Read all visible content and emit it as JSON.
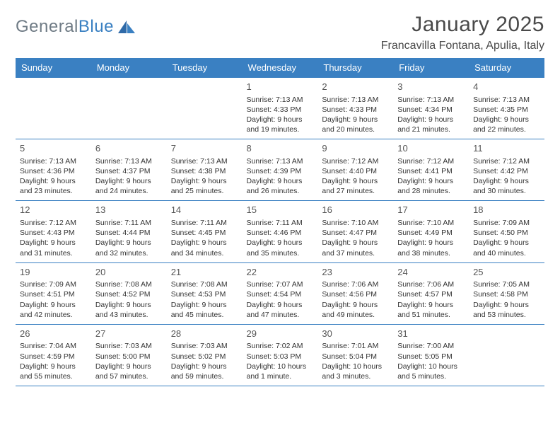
{
  "brand": {
    "part1": "General",
    "part2": "Blue"
  },
  "title": "January 2025",
  "location": "Francavilla Fontana, Apulia, Italy",
  "colors": {
    "header_bg": "#3a80c2",
    "header_text": "#ffffff",
    "rule": "#3a80c2",
    "title_color": "#4a4a4a",
    "body_text": "#333333"
  },
  "weekdays": [
    "Sunday",
    "Monday",
    "Tuesday",
    "Wednesday",
    "Thursday",
    "Friday",
    "Saturday"
  ],
  "weeks": [
    [
      null,
      null,
      null,
      {
        "day": "1",
        "sunrise": "Sunrise: 7:13 AM",
        "sunset": "Sunset: 4:33 PM",
        "daylight": "Daylight: 9 hours and 19 minutes."
      },
      {
        "day": "2",
        "sunrise": "Sunrise: 7:13 AM",
        "sunset": "Sunset: 4:33 PM",
        "daylight": "Daylight: 9 hours and 20 minutes."
      },
      {
        "day": "3",
        "sunrise": "Sunrise: 7:13 AM",
        "sunset": "Sunset: 4:34 PM",
        "daylight": "Daylight: 9 hours and 21 minutes."
      },
      {
        "day": "4",
        "sunrise": "Sunrise: 7:13 AM",
        "sunset": "Sunset: 4:35 PM",
        "daylight": "Daylight: 9 hours and 22 minutes."
      }
    ],
    [
      {
        "day": "5",
        "sunrise": "Sunrise: 7:13 AM",
        "sunset": "Sunset: 4:36 PM",
        "daylight": "Daylight: 9 hours and 23 minutes."
      },
      {
        "day": "6",
        "sunrise": "Sunrise: 7:13 AM",
        "sunset": "Sunset: 4:37 PM",
        "daylight": "Daylight: 9 hours and 24 minutes."
      },
      {
        "day": "7",
        "sunrise": "Sunrise: 7:13 AM",
        "sunset": "Sunset: 4:38 PM",
        "daylight": "Daylight: 9 hours and 25 minutes."
      },
      {
        "day": "8",
        "sunrise": "Sunrise: 7:13 AM",
        "sunset": "Sunset: 4:39 PM",
        "daylight": "Daylight: 9 hours and 26 minutes."
      },
      {
        "day": "9",
        "sunrise": "Sunrise: 7:12 AM",
        "sunset": "Sunset: 4:40 PM",
        "daylight": "Daylight: 9 hours and 27 minutes."
      },
      {
        "day": "10",
        "sunrise": "Sunrise: 7:12 AM",
        "sunset": "Sunset: 4:41 PM",
        "daylight": "Daylight: 9 hours and 28 minutes."
      },
      {
        "day": "11",
        "sunrise": "Sunrise: 7:12 AM",
        "sunset": "Sunset: 4:42 PM",
        "daylight": "Daylight: 9 hours and 30 minutes."
      }
    ],
    [
      {
        "day": "12",
        "sunrise": "Sunrise: 7:12 AM",
        "sunset": "Sunset: 4:43 PM",
        "daylight": "Daylight: 9 hours and 31 minutes."
      },
      {
        "day": "13",
        "sunrise": "Sunrise: 7:11 AM",
        "sunset": "Sunset: 4:44 PM",
        "daylight": "Daylight: 9 hours and 32 minutes."
      },
      {
        "day": "14",
        "sunrise": "Sunrise: 7:11 AM",
        "sunset": "Sunset: 4:45 PM",
        "daylight": "Daylight: 9 hours and 34 minutes."
      },
      {
        "day": "15",
        "sunrise": "Sunrise: 7:11 AM",
        "sunset": "Sunset: 4:46 PM",
        "daylight": "Daylight: 9 hours and 35 minutes."
      },
      {
        "day": "16",
        "sunrise": "Sunrise: 7:10 AM",
        "sunset": "Sunset: 4:47 PM",
        "daylight": "Daylight: 9 hours and 37 minutes."
      },
      {
        "day": "17",
        "sunrise": "Sunrise: 7:10 AM",
        "sunset": "Sunset: 4:49 PM",
        "daylight": "Daylight: 9 hours and 38 minutes."
      },
      {
        "day": "18",
        "sunrise": "Sunrise: 7:09 AM",
        "sunset": "Sunset: 4:50 PM",
        "daylight": "Daylight: 9 hours and 40 minutes."
      }
    ],
    [
      {
        "day": "19",
        "sunrise": "Sunrise: 7:09 AM",
        "sunset": "Sunset: 4:51 PM",
        "daylight": "Daylight: 9 hours and 42 minutes."
      },
      {
        "day": "20",
        "sunrise": "Sunrise: 7:08 AM",
        "sunset": "Sunset: 4:52 PM",
        "daylight": "Daylight: 9 hours and 43 minutes."
      },
      {
        "day": "21",
        "sunrise": "Sunrise: 7:08 AM",
        "sunset": "Sunset: 4:53 PM",
        "daylight": "Daylight: 9 hours and 45 minutes."
      },
      {
        "day": "22",
        "sunrise": "Sunrise: 7:07 AM",
        "sunset": "Sunset: 4:54 PM",
        "daylight": "Daylight: 9 hours and 47 minutes."
      },
      {
        "day": "23",
        "sunrise": "Sunrise: 7:06 AM",
        "sunset": "Sunset: 4:56 PM",
        "daylight": "Daylight: 9 hours and 49 minutes."
      },
      {
        "day": "24",
        "sunrise": "Sunrise: 7:06 AM",
        "sunset": "Sunset: 4:57 PM",
        "daylight": "Daylight: 9 hours and 51 minutes."
      },
      {
        "day": "25",
        "sunrise": "Sunrise: 7:05 AM",
        "sunset": "Sunset: 4:58 PM",
        "daylight": "Daylight: 9 hours and 53 minutes."
      }
    ],
    [
      {
        "day": "26",
        "sunrise": "Sunrise: 7:04 AM",
        "sunset": "Sunset: 4:59 PM",
        "daylight": "Daylight: 9 hours and 55 minutes."
      },
      {
        "day": "27",
        "sunrise": "Sunrise: 7:03 AM",
        "sunset": "Sunset: 5:00 PM",
        "daylight": "Daylight: 9 hours and 57 minutes."
      },
      {
        "day": "28",
        "sunrise": "Sunrise: 7:03 AM",
        "sunset": "Sunset: 5:02 PM",
        "daylight": "Daylight: 9 hours and 59 minutes."
      },
      {
        "day": "29",
        "sunrise": "Sunrise: 7:02 AM",
        "sunset": "Sunset: 5:03 PM",
        "daylight": "Daylight: 10 hours and 1 minute."
      },
      {
        "day": "30",
        "sunrise": "Sunrise: 7:01 AM",
        "sunset": "Sunset: 5:04 PM",
        "daylight": "Daylight: 10 hours and 3 minutes."
      },
      {
        "day": "31",
        "sunrise": "Sunrise: 7:00 AM",
        "sunset": "Sunset: 5:05 PM",
        "daylight": "Daylight: 10 hours and 5 minutes."
      },
      null
    ]
  ]
}
